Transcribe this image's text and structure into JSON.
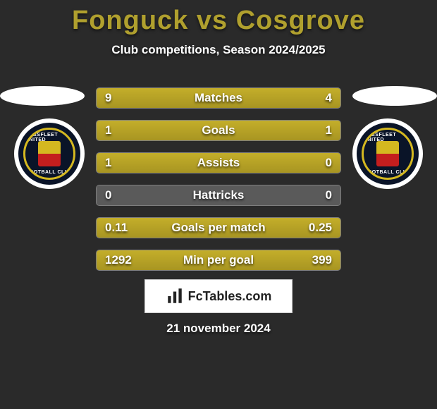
{
  "title_color": "#b0a02e",
  "title": "Fonguck vs Cosgrove",
  "subtitle": "Club competitions, Season 2024/2025",
  "crest": {
    "top_text": "EBBSFLEET UNITED",
    "bottom_text": "FOOTBALL CLUB"
  },
  "bars": {
    "fill_color": "#b5a028",
    "track_color": "#5a5a5a",
    "label_fontsize": 17,
    "rows": [
      {
        "label": "Matches",
        "left": "9",
        "right": "4",
        "left_pct": 69,
        "right_pct": 31
      },
      {
        "label": "Goals",
        "left": "1",
        "right": "1",
        "left_pct": 50,
        "right_pct": 50
      },
      {
        "label": "Assists",
        "left": "1",
        "right": "0",
        "left_pct": 100,
        "right_pct": 0
      },
      {
        "label": "Hattricks",
        "left": "0",
        "right": "0",
        "left_pct": 0,
        "right_pct": 0
      },
      {
        "label": "Goals per match",
        "left": "0.11",
        "right": "0.25",
        "left_pct": 31,
        "right_pct": 69
      },
      {
        "label": "Min per goal",
        "left": "1292",
        "right": "399",
        "left_pct": 76,
        "right_pct": 24
      }
    ]
  },
  "footer": {
    "brand": "FcTables.com",
    "date": "21 november 2024"
  }
}
